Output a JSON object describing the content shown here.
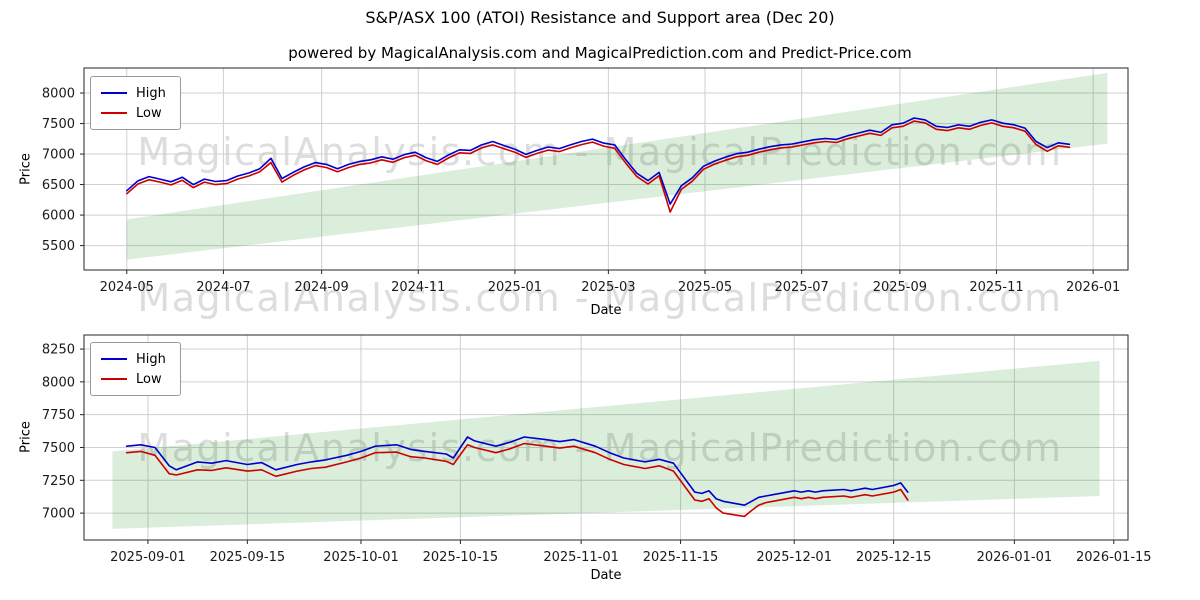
{
  "page": {
    "title": "S&P/ASX 100 (ATOI) Resistance and Support area (Dec 20)",
    "subtitle": "powered by MagicalAnalysis.com and MagicalPrediction.com and Predict-Price.com",
    "watermark": "MagicalAnalysis.com - MagicalPrediction.com"
  },
  "colors": {
    "high": "#0000cd",
    "low": "#cd0000",
    "band": "#008000",
    "grid": "#d0d0d0",
    "spine": "#262626",
    "tick_text": "#1a1a1a",
    "watermark": "#c9c9c9"
  },
  "chart_data": [
    {
      "type": "line",
      "xlabel": "Date",
      "ylabel": "Price",
      "legend_position": "upper left",
      "grid": true,
      "xlim": [
        "2024-04-04",
        "2026-01-23"
      ],
      "ylim": [
        5100,
        8410
      ],
      "yticks": [
        5500,
        6000,
        6500,
        7000,
        7500,
        8000
      ],
      "xticks": [
        {
          "label": "2024-05",
          "date": "2024-05-01"
        },
        {
          "label": "2024-07",
          "date": "2024-07-01"
        },
        {
          "label": "2024-09",
          "date": "2024-09-01"
        },
        {
          "label": "2024-11",
          "date": "2024-11-01"
        },
        {
          "label": "2025-01",
          "date": "2025-01-01"
        },
        {
          "label": "2025-03",
          "date": "2025-03-01"
        },
        {
          "label": "2025-05",
          "date": "2025-05-01"
        },
        {
          "label": "2025-07",
          "date": "2025-07-01"
        },
        {
          "label": "2025-09",
          "date": "2025-09-01"
        },
        {
          "label": "2025-11",
          "date": "2025-11-01"
        },
        {
          "label": "2026-01",
          "date": "2026-01-01"
        }
      ],
      "band": {
        "dates": [
          "2024-05-01",
          "2026-01-10"
        ],
        "upper": [
          5930,
          8330
        ],
        "lower": [
          5270,
          7170
        ]
      },
      "dates": [
        "2024-05-01",
        "2024-05-08",
        "2024-05-15",
        "2024-05-22",
        "2024-05-29",
        "2024-06-05",
        "2024-06-12",
        "2024-06-19",
        "2024-06-26",
        "2024-07-03",
        "2024-07-10",
        "2024-07-17",
        "2024-07-24",
        "2024-07-31",
        "2024-08-07",
        "2024-08-14",
        "2024-08-21",
        "2024-08-28",
        "2024-09-04",
        "2024-09-11",
        "2024-09-18",
        "2024-09-25",
        "2024-10-02",
        "2024-10-09",
        "2024-10-16",
        "2024-10-23",
        "2024-10-30",
        "2024-11-06",
        "2024-11-13",
        "2024-11-20",
        "2024-11-27",
        "2024-12-04",
        "2024-12-11",
        "2024-12-18",
        "2024-12-25",
        "2025-01-01",
        "2025-01-08",
        "2025-01-15",
        "2025-01-22",
        "2025-01-29",
        "2025-02-05",
        "2025-02-12",
        "2025-02-19",
        "2025-02-26",
        "2025-03-05",
        "2025-03-12",
        "2025-03-19",
        "2025-03-26",
        "2025-04-02",
        "2025-04-09",
        "2025-04-16",
        "2025-04-23",
        "2025-04-30",
        "2025-05-07",
        "2025-05-14",
        "2025-05-21",
        "2025-05-28",
        "2025-06-04",
        "2025-06-11",
        "2025-06-18",
        "2025-06-25",
        "2025-07-02",
        "2025-07-09",
        "2025-07-16",
        "2025-07-23",
        "2025-07-30",
        "2025-08-06",
        "2025-08-13",
        "2025-08-20",
        "2025-08-27",
        "2025-09-03",
        "2025-09-10",
        "2025-09-17",
        "2025-09-24",
        "2025-10-01",
        "2025-10-08",
        "2025-10-15",
        "2025-10-22",
        "2025-10-29",
        "2025-11-05",
        "2025-11-12",
        "2025-11-19",
        "2025-11-26",
        "2025-12-03",
        "2025-12-10",
        "2025-12-17"
      ],
      "series": [
        {
          "name": "High",
          "color": "#0000cd",
          "values": [
            6400,
            6560,
            6630,
            6590,
            6545,
            6620,
            6500,
            6590,
            6550,
            6565,
            6640,
            6690,
            6760,
            6930,
            6600,
            6700,
            6790,
            6860,
            6830,
            6760,
            6830,
            6880,
            6905,
            6955,
            6915,
            6990,
            7030,
            6940,
            6880,
            6985,
            7070,
            7060,
            7150,
            7205,
            7140,
            7080,
            6995,
            7060,
            7115,
            7090,
            7150,
            7205,
            7245,
            7180,
            7150,
            6905,
            6685,
            6565,
            6700,
            6180,
            6480,
            6610,
            6800,
            6885,
            6950,
            7005,
            7030,
            7080,
            7120,
            7150,
            7165,
            7200,
            7235,
            7255,
            7240,
            7300,
            7345,
            7390,
            7355,
            7480,
            7505,
            7590,
            7560,
            7455,
            7435,
            7480,
            7455,
            7520,
            7560,
            7505,
            7480,
            7425,
            7205,
            7105,
            7185,
            7160
          ]
        },
        {
          "name": "Low",
          "color": "#cd0000",
          "values": [
            6350,
            6510,
            6580,
            6540,
            6495,
            6570,
            6450,
            6540,
            6500,
            6515,
            6590,
            6640,
            6710,
            6860,
            6540,
            6650,
            6740,
            6810,
            6780,
            6710,
            6780,
            6830,
            6855,
            6905,
            6865,
            6940,
            6980,
            6890,
            6830,
            6935,
            7020,
            7010,
            7100,
            7150,
            7090,
            7030,
            6945,
            7010,
            7065,
            7040,
            7100,
            7155,
            7195,
            7130,
            7095,
            6850,
            6630,
            6510,
            6645,
            6050,
            6420,
            6555,
            6750,
            6835,
            6900,
            6955,
            6980,
            7030,
            7070,
            7100,
            7115,
            7150,
            7185,
            7205,
            7190,
            7250,
            7295,
            7340,
            7305,
            7430,
            7455,
            7540,
            7510,
            7405,
            7385,
            7430,
            7405,
            7470,
            7510,
            7455,
            7430,
            7375,
            7155,
            7045,
            7135,
            7110
          ]
        }
      ]
    },
    {
      "type": "line",
      "xlabel": "Date",
      "ylabel": "Price",
      "legend_position": "upper left",
      "grid": true,
      "xlim": [
        "2025-08-23",
        "2026-01-17"
      ],
      "ylim": [
        6795,
        8357
      ],
      "yticks": [
        7000,
        7250,
        7500,
        7750,
        8000,
        8250
      ],
      "xticks": [
        {
          "label": "2025-09-01",
          "date": "2025-09-01"
        },
        {
          "label": "2025-09-15",
          "date": "2025-09-15"
        },
        {
          "label": "2025-10-01",
          "date": "2025-10-01"
        },
        {
          "label": "2025-10-15",
          "date": "2025-10-15"
        },
        {
          "label": "2025-11-01",
          "date": "2025-11-01"
        },
        {
          "label": "2025-11-15",
          "date": "2025-11-15"
        },
        {
          "label": "2025-12-01",
          "date": "2025-12-01"
        },
        {
          "label": "2025-12-15",
          "date": "2025-12-15"
        },
        {
          "label": "2026-01-01",
          "date": "2026-01-01"
        },
        {
          "label": "2026-01-15",
          "date": "2026-01-15"
        }
      ],
      "band": {
        "dates": [
          "2025-08-27",
          "2026-01-13"
        ],
        "upper": [
          7470,
          8160
        ],
        "lower": [
          6880,
          7130
        ]
      },
      "dates": [
        "2025-08-29",
        "2025-08-31",
        "2025-09-02",
        "2025-09-04",
        "2025-09-05",
        "2025-09-08",
        "2025-09-10",
        "2025-09-12",
        "2025-09-15",
        "2025-09-17",
        "2025-09-19",
        "2025-09-22",
        "2025-09-24",
        "2025-09-26",
        "2025-09-29",
        "2025-10-01",
        "2025-10-03",
        "2025-10-06",
        "2025-10-08",
        "2025-10-10",
        "2025-10-13",
        "2025-10-14",
        "2025-10-16",
        "2025-10-17",
        "2025-10-20",
        "2025-10-22",
        "2025-10-24",
        "2025-10-27",
        "2025-10-29",
        "2025-10-31",
        "2025-11-03",
        "2025-11-05",
        "2025-11-07",
        "2025-11-10",
        "2025-11-12",
        "2025-11-14",
        "2025-11-17",
        "2025-11-18",
        "2025-11-19",
        "2025-11-20",
        "2025-11-21",
        "2025-11-24",
        "2025-11-25",
        "2025-11-26",
        "2025-11-27",
        "2025-11-28",
        "2025-12-01",
        "2025-12-02",
        "2025-12-03",
        "2025-12-04",
        "2025-12-05",
        "2025-12-08",
        "2025-12-09",
        "2025-12-10",
        "2025-12-11",
        "2025-12-12",
        "2025-12-15",
        "2025-12-16",
        "2025-12-17"
      ],
      "series": [
        {
          "name": "High",
          "color": "#0000cd",
          "values": [
            7510,
            7520,
            7500,
            7360,
            7330,
            7390,
            7380,
            7400,
            7370,
            7385,
            7330,
            7370,
            7390,
            7405,
            7440,
            7470,
            7510,
            7520,
            7485,
            7470,
            7450,
            7420,
            7580,
            7550,
            7510,
            7540,
            7580,
            7560,
            7545,
            7560,
            7510,
            7460,
            7420,
            7390,
            7410,
            7380,
            7160,
            7150,
            7170,
            7110,
            7090,
            7060,
            7090,
            7120,
            7130,
            7140,
            7170,
            7160,
            7170,
            7160,
            7170,
            7180,
            7170,
            7180,
            7190,
            7180,
            7210,
            7230,
            7160
          ]
        },
        {
          "name": "Low",
          "color": "#cd0000",
          "values": [
            7460,
            7470,
            7440,
            7300,
            7290,
            7330,
            7325,
            7345,
            7320,
            7330,
            7280,
            7320,
            7340,
            7350,
            7390,
            7420,
            7460,
            7465,
            7430,
            7420,
            7395,
            7370,
            7520,
            7500,
            7460,
            7490,
            7530,
            7510,
            7495,
            7510,
            7460,
            7410,
            7370,
            7340,
            7360,
            7320,
            7100,
            7090,
            7110,
            7040,
            7000,
            6975,
            7020,
            7060,
            7080,
            7090,
            7120,
            7110,
            7120,
            7110,
            7120,
            7130,
            7120,
            7130,
            7140,
            7130,
            7160,
            7180,
            7100
          ]
        }
      ]
    }
  ]
}
